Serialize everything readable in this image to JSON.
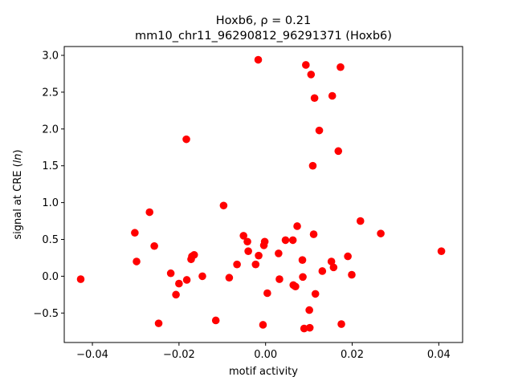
{
  "chart_data": {
    "type": "scatter",
    "title_line1": "Hoxb6, ρ = 0.21",
    "title_line2": "mm10_chr11_96290812_96291371 (Hoxb6)",
    "xlabel": "motif activity",
    "ylabel": "signal at CRE (ln)",
    "xlim": [
      -0.0465,
      0.0455
    ],
    "ylim": [
      -0.9,
      3.12
    ],
    "x_ticks": [
      -0.04,
      -0.02,
      0.0,
      0.02,
      0.04
    ],
    "x_tick_labels": [
      "−0.04",
      "−0.02",
      "0.00",
      "0.02",
      "0.04"
    ],
    "y_ticks": [
      -0.5,
      0.0,
      0.5,
      1.0,
      1.5,
      2.0,
      2.5,
      3.0
    ],
    "y_tick_labels": [
      "−0.5",
      "0.0",
      "0.5",
      "1.0",
      "1.5",
      "2.0",
      "2.5",
      "3.0"
    ],
    "grid": false,
    "legend": "none",
    "marker_color": "#ff0000",
    "points": [
      {
        "x": -0.0427,
        "y": -0.04
      },
      {
        "x": -0.0302,
        "y": 0.59
      },
      {
        "x": -0.0298,
        "y": 0.2
      },
      {
        "x": -0.0268,
        "y": 0.87
      },
      {
        "x": -0.0257,
        "y": 0.41
      },
      {
        "x": -0.0247,
        "y": -0.64
      },
      {
        "x": -0.0219,
        "y": 0.04
      },
      {
        "x": -0.0207,
        "y": -0.25
      },
      {
        "x": -0.02,
        "y": -0.1
      },
      {
        "x": -0.0183,
        "y": 1.86
      },
      {
        "x": -0.0182,
        "y": -0.05
      },
      {
        "x": -0.0172,
        "y": 0.23
      },
      {
        "x": -0.017,
        "y": 0.27
      },
      {
        "x": -0.0165,
        "y": 0.29
      },
      {
        "x": -0.0146,
        "y": 0.0
      },
      {
        "x": -0.0115,
        "y": -0.6
      },
      {
        "x": -0.0097,
        "y": 0.96
      },
      {
        "x": -0.0084,
        "y": -0.02
      },
      {
        "x": -0.0066,
        "y": 0.16
      },
      {
        "x": -0.0051,
        "y": 0.55
      },
      {
        "x": -0.0042,
        "y": 0.47
      },
      {
        "x": -0.004,
        "y": 0.34
      },
      {
        "x": -0.0023,
        "y": 0.16
      },
      {
        "x": -0.0017,
        "y": 2.94
      },
      {
        "x": -0.0016,
        "y": 0.28
      },
      {
        "x": -0.0006,
        "y": -0.66
      },
      {
        "x": -0.0004,
        "y": 0.42
      },
      {
        "x": -0.0002,
        "y": 0.47
      },
      {
        "x": 0.0004,
        "y": -0.23
      },
      {
        "x": 0.003,
        "y": 0.31
      },
      {
        "x": 0.0032,
        "y": -0.04
      },
      {
        "x": 0.0046,
        "y": 0.49
      },
      {
        "x": 0.0063,
        "y": 0.49
      },
      {
        "x": 0.0064,
        "y": -0.12
      },
      {
        "x": 0.0069,
        "y": -0.14
      },
      {
        "x": 0.0073,
        "y": 0.68
      },
      {
        "x": 0.0085,
        "y": 0.22
      },
      {
        "x": 0.0086,
        "y": -0.01
      },
      {
        "x": 0.0089,
        "y": -0.71
      },
      {
        "x": 0.0093,
        "y": 2.87
      },
      {
        "x": 0.0101,
        "y": -0.46
      },
      {
        "x": 0.0102,
        "y": -0.7
      },
      {
        "x": 0.0105,
        "y": 2.74
      },
      {
        "x": 0.0109,
        "y": 1.5
      },
      {
        "x": 0.0111,
        "y": 0.57
      },
      {
        "x": 0.0113,
        "y": 2.42
      },
      {
        "x": 0.0115,
        "y": -0.24
      },
      {
        "x": 0.0124,
        "y": 1.98
      },
      {
        "x": 0.0131,
        "y": 0.07
      },
      {
        "x": 0.0152,
        "y": 0.2
      },
      {
        "x": 0.0154,
        "y": 2.45
      },
      {
        "x": 0.0157,
        "y": 0.12
      },
      {
        "x": 0.0168,
        "y": 1.7
      },
      {
        "x": 0.0173,
        "y": 2.84
      },
      {
        "x": 0.0175,
        "y": -0.65
      },
      {
        "x": 0.019,
        "y": 0.27
      },
      {
        "x": 0.0199,
        "y": 0.02
      },
      {
        "x": 0.0219,
        "y": 0.75
      },
      {
        "x": 0.0266,
        "y": 0.58
      },
      {
        "x": 0.0406,
        "y": 0.34
      }
    ]
  }
}
